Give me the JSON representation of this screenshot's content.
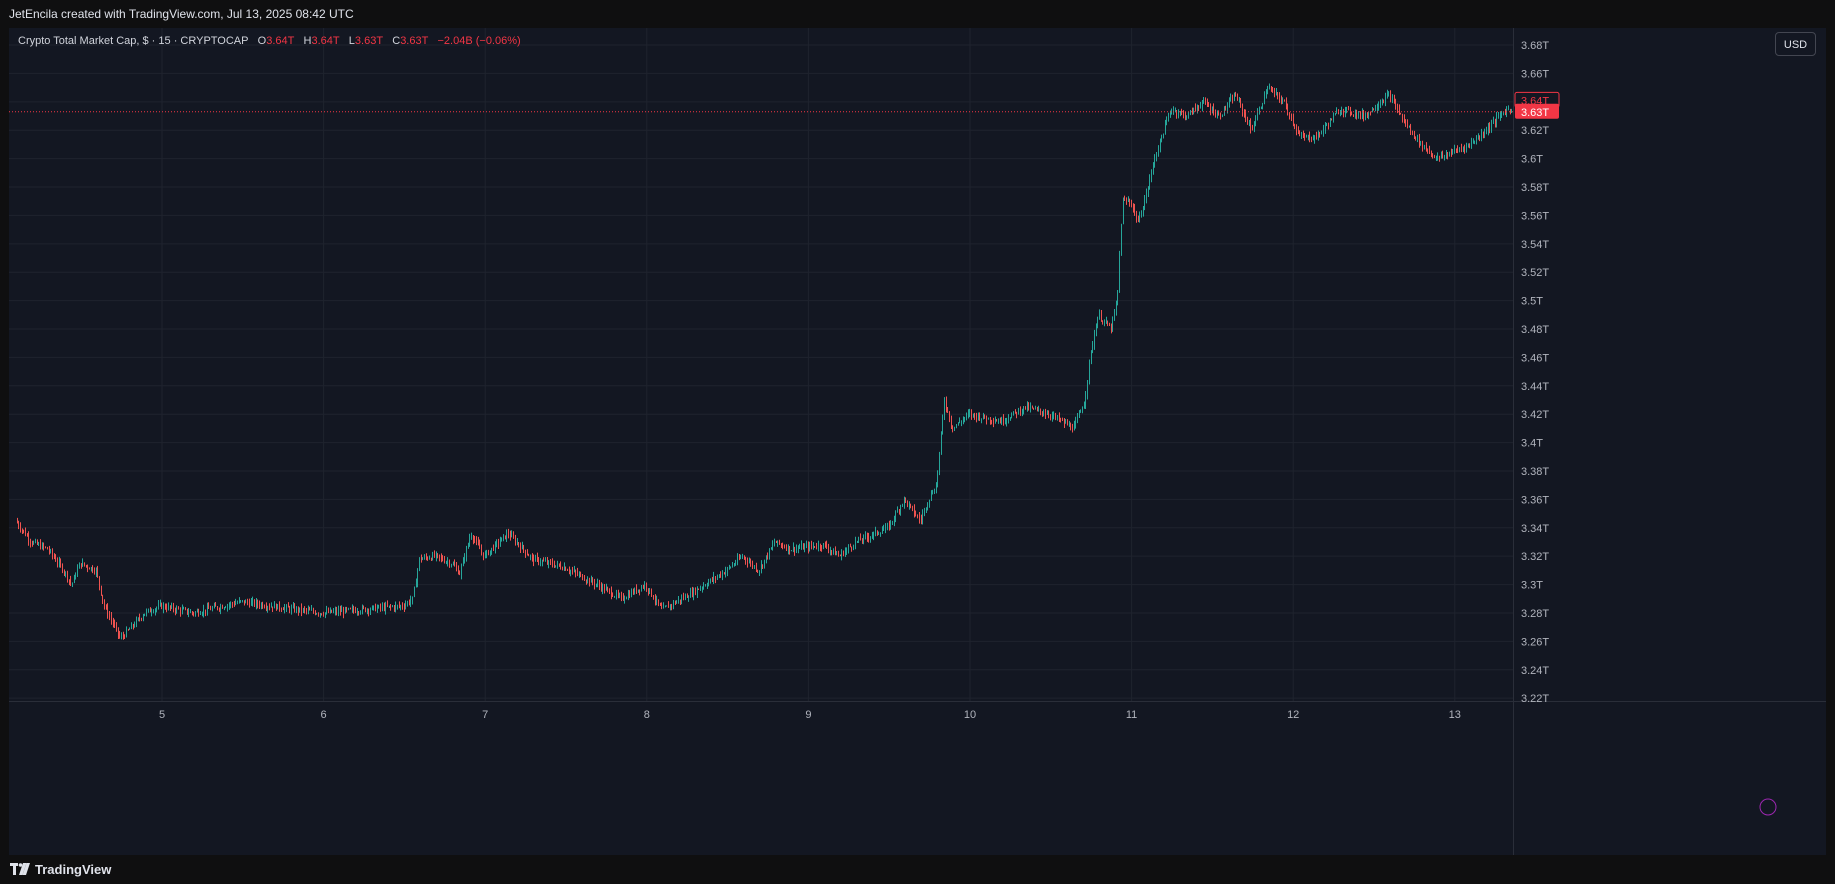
{
  "header": {
    "credit": "JetEncila created with TradingView.com, Jul 13, 2025 08:42 UTC"
  },
  "legend": {
    "symbol": "Crypto Total Market Cap, $ · 15 · CRYPTOCAP",
    "o_label": "O",
    "o_value": "3.64T",
    "h_label": "H",
    "h_value": "3.64T",
    "l_label": "L",
    "l_value": "3.63T",
    "c_label": "C",
    "c_value": "3.63T",
    "change": "−2.04B (−0.06%)"
  },
  "currency": "USD",
  "footer": {
    "brand": "TradingView"
  },
  "colors": {
    "up": "#26a69a",
    "down": "#ef5350",
    "background": "#131722",
    "grid": "#1f232e",
    "last_price": "#f23645"
  },
  "chart_data": {
    "type": "candlestick",
    "interval": "15",
    "x_ticks": [
      "5",
      "6",
      "7",
      "8",
      "9",
      "10",
      "11",
      "12",
      "13"
    ],
    "y_ticks": [
      "3.22T",
      "3.24T",
      "3.26T",
      "3.28T",
      "3.3T",
      "3.32T",
      "3.34T",
      "3.36T",
      "3.38T",
      "3.4T",
      "3.42T",
      "3.44T",
      "3.46T",
      "3.48T",
      "3.5T",
      "3.52T",
      "3.54T",
      "3.56T",
      "3.58T",
      "3.6T",
      "3.62T",
      "3.64T",
      "3.66T",
      "3.68T"
    ],
    "y_range": [
      3.218,
      3.692
    ],
    "x_range_days": [
      4.1,
      13.35
    ],
    "last_price_label": "3.63T",
    "high_price_label": "3.64T",
    "last_price": 3.633,
    "high_price": 3.641,
    "path": [
      [
        4.1,
        3.345
      ],
      [
        4.2,
        3.33
      ],
      [
        4.3,
        3.325
      ],
      [
        4.4,
        3.31
      ],
      [
        4.45,
        3.3
      ],
      [
        4.5,
        3.315
      ],
      [
        4.6,
        3.31
      ],
      [
        4.65,
        3.285
      ],
      [
        4.75,
        3.262
      ],
      [
        4.82,
        3.27
      ],
      [
        4.9,
        3.28
      ],
      [
        5.0,
        3.285
      ],
      [
        5.2,
        3.28
      ],
      [
        5.5,
        3.288
      ],
      [
        5.8,
        3.283
      ],
      [
        6.0,
        3.28
      ],
      [
        6.3,
        3.283
      ],
      [
        6.5,
        3.285
      ],
      [
        6.56,
        3.29
      ],
      [
        6.6,
        3.318
      ],
      [
        6.7,
        3.32
      ],
      [
        6.8,
        3.315
      ],
      [
        6.85,
        3.308
      ],
      [
        6.92,
        3.336
      ],
      [
        7.0,
        3.32
      ],
      [
        7.15,
        3.336
      ],
      [
        7.3,
        3.318
      ],
      [
        7.5,
        3.312
      ],
      [
        7.7,
        3.3
      ],
      [
        7.85,
        3.29
      ],
      [
        8.0,
        3.3
      ],
      [
        8.1,
        3.282
      ],
      [
        8.3,
        3.295
      ],
      [
        8.5,
        3.31
      ],
      [
        8.6,
        3.32
      ],
      [
        8.7,
        3.31
      ],
      [
        8.8,
        3.33
      ],
      [
        8.9,
        3.325
      ],
      [
        9.1,
        3.328
      ],
      [
        9.2,
        3.32
      ],
      [
        9.3,
        3.33
      ],
      [
        9.5,
        3.34
      ],
      [
        9.6,
        3.36
      ],
      [
        9.7,
        3.345
      ],
      [
        9.75,
        3.36
      ],
      [
        9.8,
        3.37
      ],
      [
        9.85,
        3.43
      ],
      [
        9.9,
        3.41
      ],
      [
        10.0,
        3.42
      ],
      [
        10.2,
        3.415
      ],
      [
        10.35,
        3.425
      ],
      [
        10.5,
        3.42
      ],
      [
        10.65,
        3.41
      ],
      [
        10.72,
        3.43
      ],
      [
        10.75,
        3.46
      ],
      [
        10.8,
        3.49
      ],
      [
        10.88,
        3.48
      ],
      [
        10.92,
        3.5
      ],
      [
        10.95,
        3.57
      ],
      [
        11.0,
        3.57
      ],
      [
        11.05,
        3.555
      ],
      [
        11.1,
        3.575
      ],
      [
        11.15,
        3.6
      ],
      [
        11.25,
        3.635
      ],
      [
        11.35,
        3.63
      ],
      [
        11.45,
        3.64
      ],
      [
        11.55,
        3.63
      ],
      [
        11.65,
        3.645
      ],
      [
        11.75,
        3.62
      ],
      [
        11.85,
        3.65
      ],
      [
        11.95,
        3.64
      ],
      [
        12.05,
        3.615
      ],
      [
        12.15,
        3.615
      ],
      [
        12.3,
        3.635
      ],
      [
        12.45,
        3.63
      ],
      [
        12.6,
        3.645
      ],
      [
        12.7,
        3.625
      ],
      [
        12.8,
        3.61
      ],
      [
        12.9,
        3.6
      ],
      [
        13.0,
        3.605
      ],
      [
        13.1,
        3.61
      ],
      [
        13.2,
        3.62
      ],
      [
        13.3,
        3.632
      ],
      [
        13.35,
        3.635
      ]
    ]
  }
}
